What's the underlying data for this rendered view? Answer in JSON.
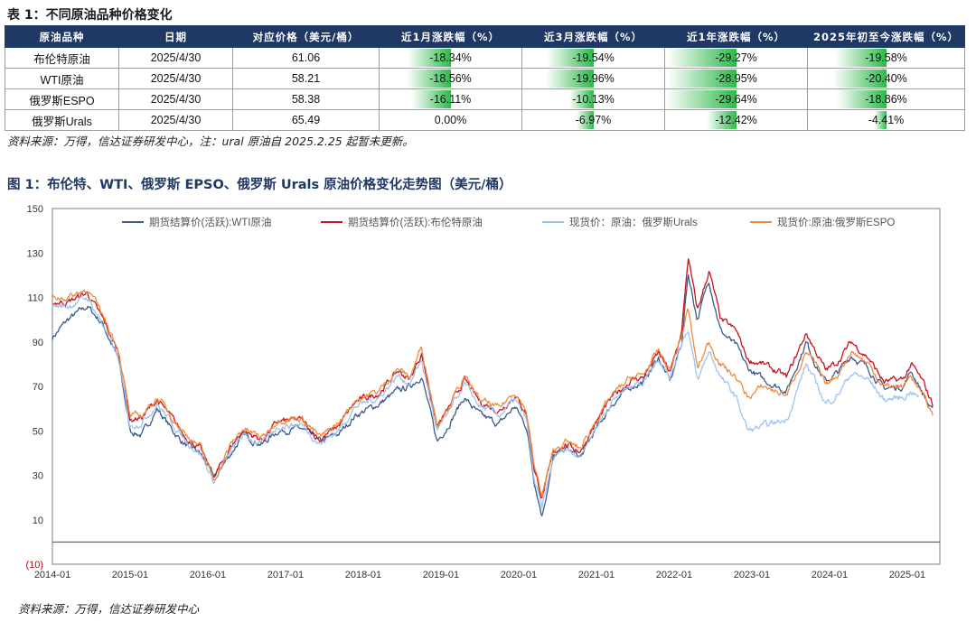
{
  "table": {
    "title": "表 1：不同原油品种价格变化",
    "headers": [
      "原油品种",
      "日期",
      "对应价格（美元/桶）",
      "近1月涨跌幅（%）",
      "近3月涨跌幅（%）",
      "近1年涨跌幅（%）",
      "2025年初至今涨跌幅（%）"
    ],
    "rows": [
      {
        "name": "布伦特原油",
        "date": "2025/4/30",
        "price": "61.06",
        "m1": "-18.34%",
        "m3": "-19.54%",
        "y1": "-29.27%",
        "ytd": "-19.58%"
      },
      {
        "name": "WTI原油",
        "date": "2025/4/30",
        "price": "58.21",
        "m1": "-18.56%",
        "m3": "-19.96%",
        "y1": "-28.95%",
        "ytd": "-20.40%"
      },
      {
        "name": "俄罗斯ESPO",
        "date": "2025/4/30",
        "price": "58.38",
        "m1": "-16.11%",
        "m3": "-10.13%",
        "y1": "-29.64%",
        "ytd": "-18.86%"
      },
      {
        "name": "俄罗斯Urals",
        "date": "2025/4/30",
        "price": "65.49",
        "m1": "0.00%",
        "m3": "-6.97%",
        "y1": "-12.42%",
        "ytd": "-4.41%"
      }
    ],
    "bar_color": "#2eb84b",
    "source": "资料来源：万得，信达证券研发中心，注：ural 原油自 2025.2.25 起暂未更新。"
  },
  "figure": {
    "title": "图 1：布伦特、WTI、俄罗斯 EPSO、俄罗斯 Urals 原油价格变化走势图（美元/桶）",
    "source": "资料来源：万得，信达证券研发中心"
  },
  "chart_data": {
    "type": "line",
    "title": "",
    "xlabel": "",
    "ylabel": "",
    "ylim": [
      -10,
      150
    ],
    "yticks": [
      -10,
      10,
      30,
      50,
      70,
      90,
      110,
      130,
      150
    ],
    "ytick_labels": [
      "(10)",
      "10",
      "30",
      "50",
      "70",
      "90",
      "110",
      "130",
      "150"
    ],
    "xlim": [
      2014.0,
      2025.42
    ],
    "xticks": [
      "2014-01",
      "2015-01",
      "2016-01",
      "2017-01",
      "2018-01",
      "2019-01",
      "2020-01",
      "2021-01",
      "2022-01",
      "2023-01",
      "2024-01",
      "2025-01"
    ],
    "grid": false,
    "legend_position": "top",
    "series": [
      {
        "name": "期货结算价(活跃):WTI原油",
        "color": "#3d5a8a",
        "points": [
          [
            2014.0,
            92
          ],
          [
            2014.2,
            100
          ],
          [
            2014.45,
            106
          ],
          [
            2014.65,
            98
          ],
          [
            2014.85,
            82
          ],
          [
            2015.0,
            50
          ],
          [
            2015.15,
            48
          ],
          [
            2015.35,
            60
          ],
          [
            2015.55,
            50
          ],
          [
            2015.7,
            44
          ],
          [
            2015.9,
            40
          ],
          [
            2016.08,
            29
          ],
          [
            2016.3,
            40
          ],
          [
            2016.45,
            48
          ],
          [
            2016.7,
            44
          ],
          [
            2016.9,
            50
          ],
          [
            2017.2,
            51
          ],
          [
            2017.45,
            45
          ],
          [
            2017.7,
            49
          ],
          [
            2017.9,
            57
          ],
          [
            2018.2,
            62
          ],
          [
            2018.45,
            68
          ],
          [
            2018.6,
            70
          ],
          [
            2018.75,
            75
          ],
          [
            2018.95,
            45
          ],
          [
            2019.1,
            53
          ],
          [
            2019.3,
            65
          ],
          [
            2019.5,
            57
          ],
          [
            2019.75,
            53
          ],
          [
            2019.95,
            61
          ],
          [
            2020.1,
            52
          ],
          [
            2020.2,
            28
          ],
          [
            2020.3,
            12
          ],
          [
            2020.45,
            38
          ],
          [
            2020.6,
            42
          ],
          [
            2020.8,
            38
          ],
          [
            2020.95,
            48
          ],
          [
            2021.2,
            62
          ],
          [
            2021.45,
            70
          ],
          [
            2021.6,
            72
          ],
          [
            2021.8,
            83
          ],
          [
            2021.95,
            72
          ],
          [
            2022.1,
            90
          ],
          [
            2022.18,
            121
          ],
          [
            2022.3,
            100
          ],
          [
            2022.45,
            118
          ],
          [
            2022.6,
            95
          ],
          [
            2022.8,
            88
          ],
          [
            2022.95,
            78
          ],
          [
            2023.15,
            73
          ],
          [
            2023.45,
            68
          ],
          [
            2023.7,
            90
          ],
          [
            2023.85,
            78
          ],
          [
            2023.95,
            72
          ],
          [
            2024.1,
            76
          ],
          [
            2024.28,
            84
          ],
          [
            2024.5,
            78
          ],
          [
            2024.7,
            69
          ],
          [
            2024.95,
            70
          ],
          [
            2025.05,
            77
          ],
          [
            2025.2,
            67
          ],
          [
            2025.33,
            58
          ]
        ]
      },
      {
        "name": "期货结算价(活跃):布伦特原油",
        "color": "#c8121c",
        "points": [
          [
            2014.0,
            108
          ],
          [
            2014.2,
            108
          ],
          [
            2014.45,
            112
          ],
          [
            2014.65,
            100
          ],
          [
            2014.85,
            85
          ],
          [
            2015.0,
            55
          ],
          [
            2015.15,
            56
          ],
          [
            2015.35,
            64
          ],
          [
            2015.55,
            55
          ],
          [
            2015.7,
            48
          ],
          [
            2015.9,
            42
          ],
          [
            2016.08,
            29
          ],
          [
            2016.3,
            43
          ],
          [
            2016.45,
            50
          ],
          [
            2016.7,
            46
          ],
          [
            2016.9,
            54
          ],
          [
            2017.2,
            55
          ],
          [
            2017.45,
            46
          ],
          [
            2017.7,
            53
          ],
          [
            2017.9,
            63
          ],
          [
            2018.2,
            67
          ],
          [
            2018.45,
            77
          ],
          [
            2018.6,
            73
          ],
          [
            2018.75,
            85
          ],
          [
            2018.95,
            52
          ],
          [
            2019.1,
            60
          ],
          [
            2019.3,
            73
          ],
          [
            2019.5,
            63
          ],
          [
            2019.75,
            59
          ],
          [
            2019.95,
            66
          ],
          [
            2020.1,
            58
          ],
          [
            2020.2,
            33
          ],
          [
            2020.3,
            20
          ],
          [
            2020.45,
            40
          ],
          [
            2020.6,
            44
          ],
          [
            2020.8,
            41
          ],
          [
            2020.95,
            51
          ],
          [
            2021.2,
            65
          ],
          [
            2021.45,
            73
          ],
          [
            2021.6,
            74
          ],
          [
            2021.8,
            85
          ],
          [
            2021.95,
            76
          ],
          [
            2022.1,
            95
          ],
          [
            2022.18,
            128
          ],
          [
            2022.3,
            104
          ],
          [
            2022.45,
            122
          ],
          [
            2022.6,
            100
          ],
          [
            2022.8,
            95
          ],
          [
            2022.95,
            82
          ],
          [
            2023.15,
            80
          ],
          [
            2023.45,
            74
          ],
          [
            2023.7,
            94
          ],
          [
            2023.85,
            84
          ],
          [
            2023.95,
            77
          ],
          [
            2024.1,
            81
          ],
          [
            2024.28,
            90
          ],
          [
            2024.5,
            83
          ],
          [
            2024.7,
            72
          ],
          [
            2024.95,
            73
          ],
          [
            2025.05,
            80
          ],
          [
            2025.2,
            72
          ],
          [
            2025.33,
            62
          ]
        ]
      },
      {
        "name": "现货价：原油：俄罗斯Urals",
        "color": "#9ec3f0",
        "points": [
          [
            2014.0,
            106
          ],
          [
            2014.2,
            106
          ],
          [
            2014.45,
            110
          ],
          [
            2014.65,
            98
          ],
          [
            2014.85,
            82
          ],
          [
            2015.0,
            52
          ],
          [
            2015.15,
            54
          ],
          [
            2015.35,
            62
          ],
          [
            2015.55,
            53
          ],
          [
            2015.7,
            46
          ],
          [
            2015.9,
            40
          ],
          [
            2016.08,
            27
          ],
          [
            2016.3,
            41
          ],
          [
            2016.45,
            48
          ],
          [
            2016.7,
            44
          ],
          [
            2016.9,
            52
          ],
          [
            2017.2,
            53
          ],
          [
            2017.45,
            44
          ],
          [
            2017.7,
            51
          ],
          [
            2017.9,
            61
          ],
          [
            2018.2,
            65
          ],
          [
            2018.45,
            75
          ],
          [
            2018.6,
            71
          ],
          [
            2018.75,
            82
          ],
          [
            2018.95,
            50
          ],
          [
            2019.1,
            58
          ],
          [
            2019.3,
            71
          ],
          [
            2019.5,
            61
          ],
          [
            2019.75,
            57
          ],
          [
            2019.95,
            64
          ],
          [
            2020.1,
            55
          ],
          [
            2020.2,
            28
          ],
          [
            2020.3,
            15
          ],
          [
            2020.45,
            38
          ],
          [
            2020.6,
            42
          ],
          [
            2020.8,
            39
          ],
          [
            2020.95,
            49
          ],
          [
            2021.2,
            63
          ],
          [
            2021.45,
            71
          ],
          [
            2021.6,
            72
          ],
          [
            2021.8,
            83
          ],
          [
            2021.95,
            74
          ],
          [
            2022.1,
            90
          ],
          [
            2022.18,
            96
          ],
          [
            2022.3,
            72
          ],
          [
            2022.45,
            86
          ],
          [
            2022.6,
            74
          ],
          [
            2022.8,
            65
          ],
          [
            2022.95,
            50
          ],
          [
            2023.15,
            52
          ],
          [
            2023.45,
            55
          ],
          [
            2023.7,
            80
          ],
          [
            2023.85,
            70
          ],
          [
            2023.95,
            62
          ],
          [
            2024.1,
            66
          ],
          [
            2024.28,
            76
          ],
          [
            2024.5,
            73
          ],
          [
            2024.7,
            64
          ],
          [
            2024.95,
            65
          ],
          [
            2025.05,
            68
          ],
          [
            2025.15,
            65
          ]
        ]
      },
      {
        "name": "现货价:原油:俄罗斯ESPO",
        "color": "#f08a3c",
        "points": [
          [
            2014.0,
            110
          ],
          [
            2014.2,
            110
          ],
          [
            2014.45,
            114
          ],
          [
            2014.65,
            102
          ],
          [
            2014.85,
            87
          ],
          [
            2015.0,
            56
          ],
          [
            2015.15,
            57
          ],
          [
            2015.35,
            65
          ],
          [
            2015.55,
            56
          ],
          [
            2015.7,
            49
          ],
          [
            2015.9,
            43
          ],
          [
            2016.08,
            28
          ],
          [
            2016.3,
            44
          ],
          [
            2016.45,
            51
          ],
          [
            2016.7,
            47
          ],
          [
            2016.9,
            55
          ],
          [
            2017.2,
            56
          ],
          [
            2017.45,
            47
          ],
          [
            2017.7,
            54
          ],
          [
            2017.9,
            64
          ],
          [
            2018.2,
            68
          ],
          [
            2018.45,
            78
          ],
          [
            2018.6,
            74
          ],
          [
            2018.75,
            88
          ],
          [
            2018.95,
            53
          ],
          [
            2019.1,
            61
          ],
          [
            2019.3,
            74
          ],
          [
            2019.5,
            64
          ],
          [
            2019.75,
            60
          ],
          [
            2019.95,
            68
          ],
          [
            2020.1,
            59
          ],
          [
            2020.2,
            34
          ],
          [
            2020.3,
            21
          ],
          [
            2020.45,
            41
          ],
          [
            2020.6,
            45
          ],
          [
            2020.8,
            42
          ],
          [
            2020.95,
            52
          ],
          [
            2021.2,
            66
          ],
          [
            2021.45,
            74
          ],
          [
            2021.6,
            75
          ],
          [
            2021.8,
            86
          ],
          [
            2021.95,
            77
          ],
          [
            2022.1,
            93
          ],
          [
            2022.18,
            105
          ],
          [
            2022.3,
            78
          ],
          [
            2022.45,
            90
          ],
          [
            2022.6,
            80
          ],
          [
            2022.8,
            74
          ],
          [
            2022.95,
            65
          ],
          [
            2023.15,
            70
          ],
          [
            2023.45,
            66
          ],
          [
            2023.7,
            86
          ],
          [
            2023.85,
            78
          ],
          [
            2023.95,
            70
          ],
          [
            2024.1,
            75
          ],
          [
            2024.28,
            86
          ],
          [
            2024.5,
            80
          ],
          [
            2024.7,
            70
          ],
          [
            2024.95,
            70
          ],
          [
            2025.05,
            75
          ],
          [
            2025.2,
            66
          ],
          [
            2025.33,
            57
          ]
        ]
      }
    ]
  }
}
